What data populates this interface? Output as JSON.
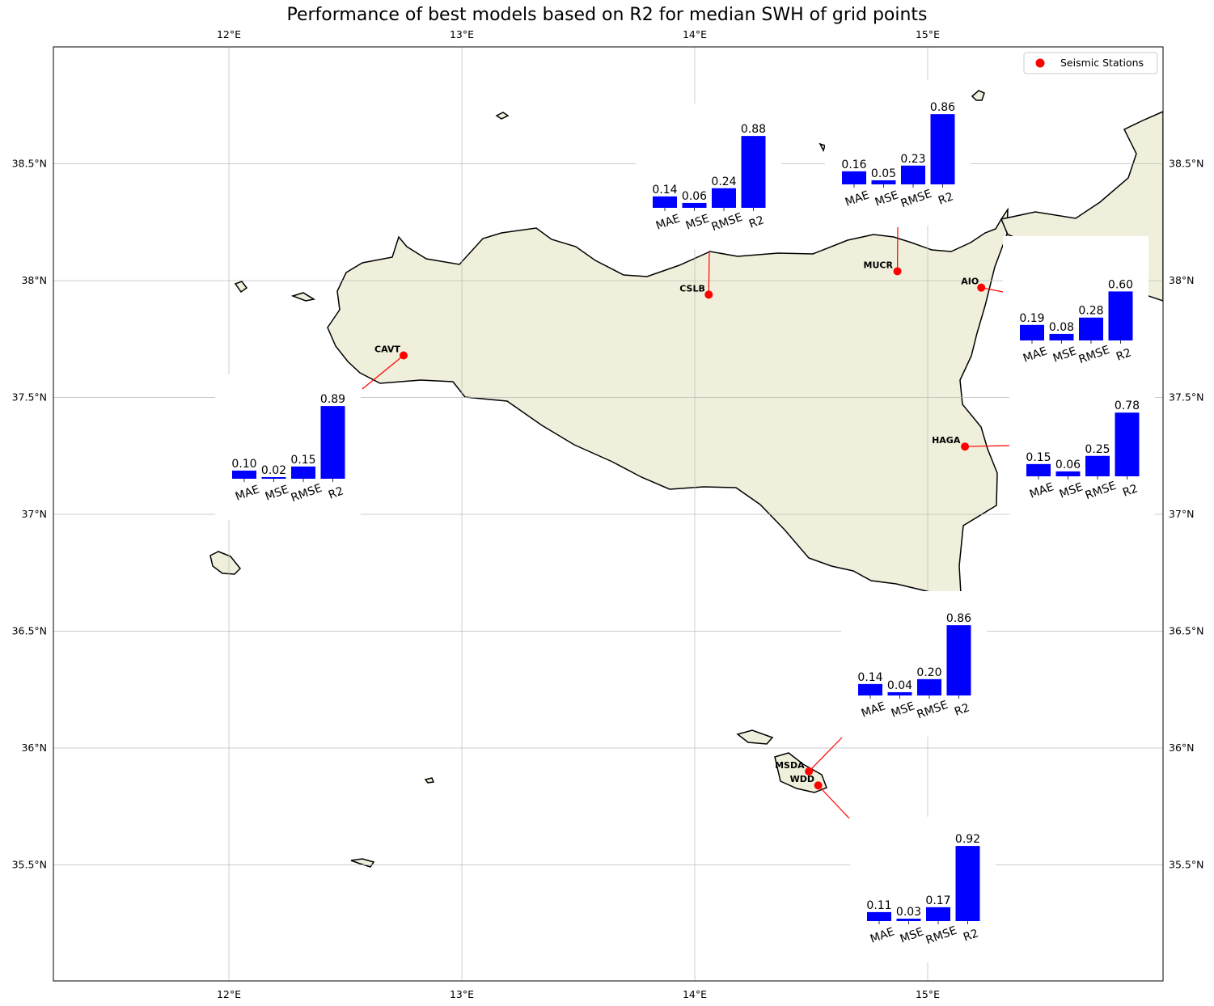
{
  "title": "Performance of best models based on R2 for median SWH of grid points",
  "legend": {
    "label": "Seismic Stations",
    "color": "#ff0000",
    "placement": "top-right"
  },
  "map": {
    "lon_range": [
      11.25,
      16.0
    ],
    "lat_range": [
      35.0,
      39.0
    ],
    "lon_ticks": [
      "12°E",
      "13°E",
      "14°E",
      "15°E"
    ],
    "lat_ticks": [
      "35.5°N",
      "36°N",
      "36.5°N",
      "37°N",
      "37.5°N",
      "38°N",
      "38.5°N"
    ],
    "land_color": "#efefdb",
    "grid": true
  },
  "bar_color": "#0000ff",
  "categories": [
    "MAE",
    "MSE",
    "RMSE",
    "R2"
  ],
  "chart_data": [
    {
      "type": "bar",
      "station": "CAVT",
      "lon": 12.75,
      "lat": 37.68,
      "categories": [
        "MAE",
        "MSE",
        "RMSE",
        "R2"
      ],
      "values": [
        0.1,
        0.02,
        0.15,
        0.89
      ],
      "value_labels": [
        "0.10",
        "0.02",
        "0.15",
        "0.89"
      ]
    },
    {
      "type": "bar",
      "station": "CSLB",
      "lon": 14.06,
      "lat": 37.94,
      "categories": [
        "MAE",
        "MSE",
        "RMSE",
        "R2"
      ],
      "values": [
        0.14,
        0.06,
        0.24,
        0.88
      ],
      "value_labels": [
        "0.14",
        "0.06",
        "0.24",
        "0.88"
      ]
    },
    {
      "type": "bar",
      "station": "MUCR",
      "lon": 14.87,
      "lat": 38.04,
      "categories": [
        "MAE",
        "MSE",
        "RMSE",
        "R2"
      ],
      "values": [
        0.16,
        0.05,
        0.23,
        0.86
      ],
      "value_labels": [
        "0.16",
        "0.05",
        "0.23",
        "0.86"
      ]
    },
    {
      "type": "bar",
      "station": "AIO",
      "lon": 15.23,
      "lat": 37.97,
      "categories": [
        "MAE",
        "MSE",
        "RMSE",
        "R2"
      ],
      "values": [
        0.19,
        0.08,
        0.28,
        0.6
      ],
      "value_labels": [
        "0.19",
        "0.08",
        "0.28",
        "0.60"
      ]
    },
    {
      "type": "bar",
      "station": "HAGA",
      "lon": 15.16,
      "lat": 37.29,
      "categories": [
        "MAE",
        "MSE",
        "RMSE",
        "R2"
      ],
      "values": [
        0.15,
        0.06,
        0.25,
        0.78
      ],
      "value_labels": [
        "0.15",
        "0.06",
        "0.25",
        "0.78"
      ]
    },
    {
      "type": "bar",
      "station": "MSDA",
      "lon": 14.49,
      "lat": 35.9,
      "categories": [
        "MAE",
        "MSE",
        "RMSE",
        "R2"
      ],
      "values": [
        0.14,
        0.04,
        0.2,
        0.86
      ],
      "value_labels": [
        "0.14",
        "0.04",
        "0.20",
        "0.86"
      ]
    },
    {
      "type": "bar",
      "station": "WDD",
      "lon": 14.53,
      "lat": 35.84,
      "categories": [
        "MAE",
        "MSE",
        "RMSE",
        "R2"
      ],
      "values": [
        0.11,
        0.03,
        0.17,
        0.92
      ],
      "value_labels": [
        "0.11",
        "0.03",
        "0.17",
        "0.92"
      ]
    }
  ]
}
